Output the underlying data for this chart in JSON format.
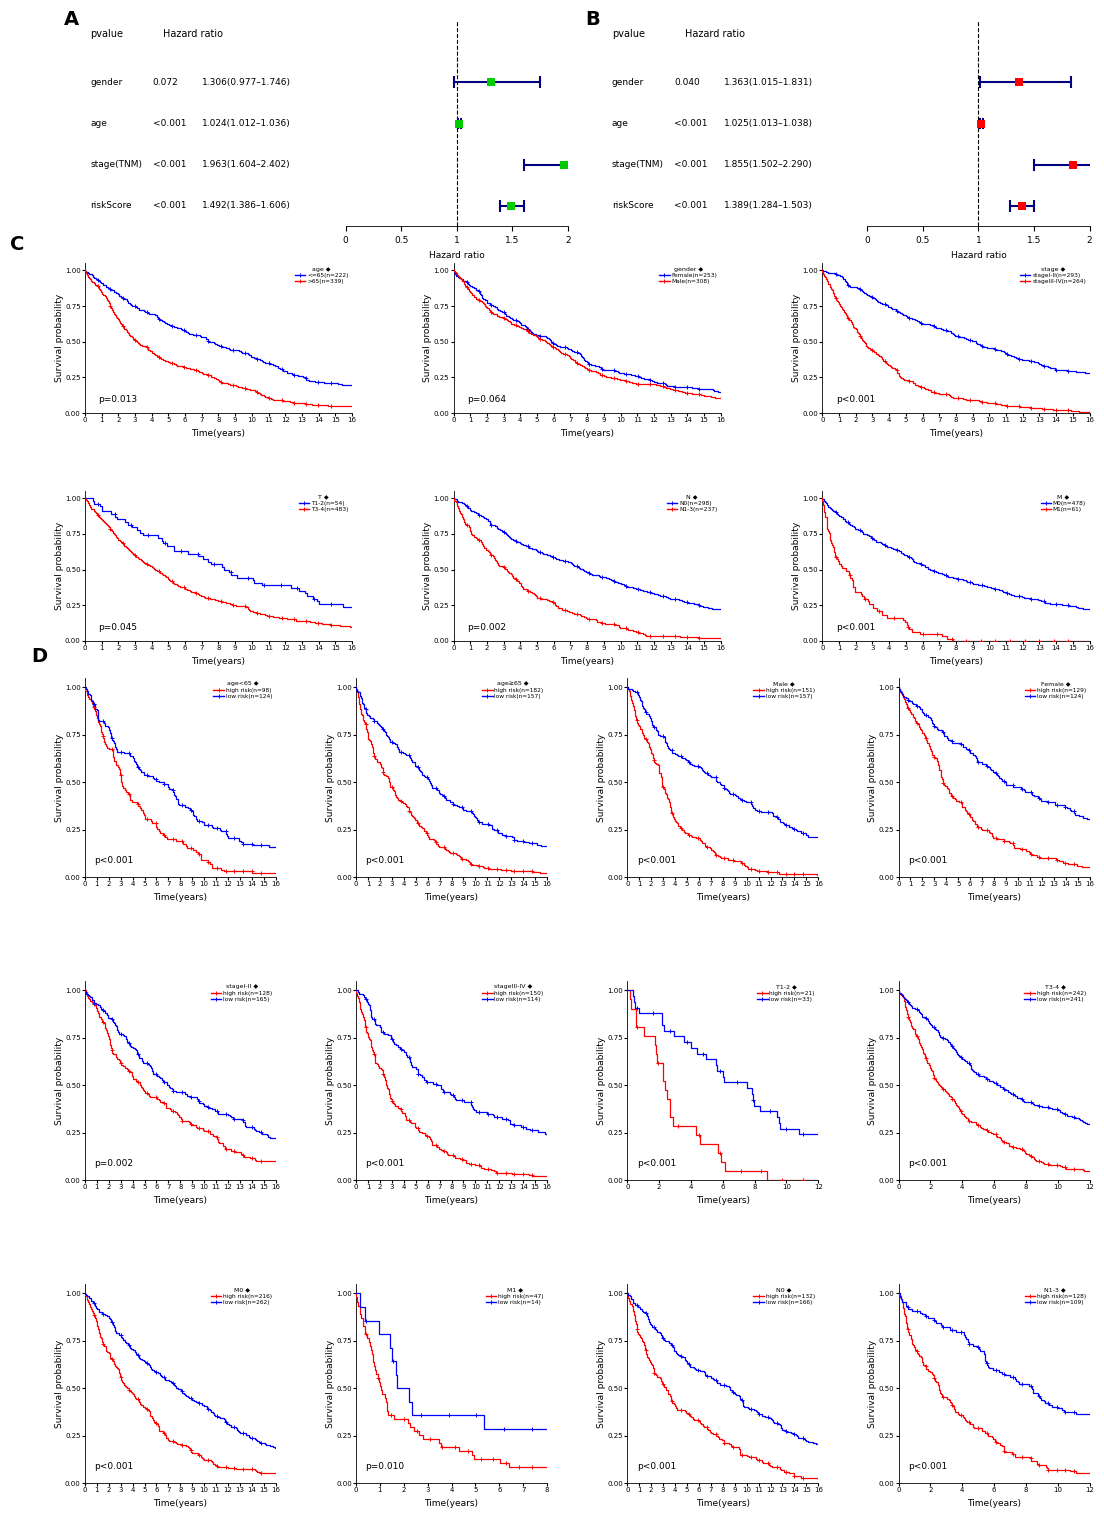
{
  "forest_A": {
    "title": "A",
    "rows": [
      "gender",
      "age",
      "stage(TNM)",
      "riskScore"
    ],
    "pvalues": [
      "0.072",
      "<0.001",
      "<0.001",
      "<0.001"
    ],
    "hr_labels": [
      "1.306(0.977–1.746)",
      "1.024(1.012–1.036)",
      "1.963(1.604–2.402)",
      "1.492(1.386–1.606)"
    ],
    "hr": [
      1.306,
      1.024,
      1.963,
      1.492
    ],
    "ci_low": [
      0.977,
      1.012,
      1.604,
      1.386
    ],
    "ci_high": [
      1.746,
      1.036,
      2.402,
      1.606
    ],
    "color": "#00cc00",
    "xlim": [
      0.0,
      2.0
    ],
    "xticks": [
      0.0,
      0.5,
      1.0,
      1.5,
      2.0
    ]
  },
  "forest_B": {
    "title": "B",
    "rows": [
      "gender",
      "age",
      "stage(TNM)",
      "riskScore"
    ],
    "pvalues": [
      "0.040",
      "<0.001",
      "<0.001",
      "<0.001"
    ],
    "hr_labels": [
      "1.363(1.015–1.831)",
      "1.025(1.013–1.038)",
      "1.855(1.502–2.290)",
      "1.389(1.284–1.503)"
    ],
    "hr": [
      1.363,
      1.025,
      1.855,
      1.389
    ],
    "ci_low": [
      1.015,
      1.013,
      1.502,
      1.284
    ],
    "ci_high": [
      1.831,
      1.038,
      2.29,
      1.503
    ],
    "color": "#ff0000",
    "xlim": [
      0.0,
      2.0
    ],
    "xticks": [
      0.0,
      0.5,
      1.0,
      1.5,
      2.0
    ]
  },
  "km_C": [
    {
      "title_var": "age",
      "legend_label": "age",
      "legend_entries": [
        "<=65(n=222)",
        ">65(n=339)"
      ],
      "colors": [
        "#0000ff",
        "#ff0000"
      ],
      "pvalue": "p=0.013",
      "xlabel": "Time(years)",
      "ylabel": "Survival probability",
      "xticks": [
        0,
        1,
        2,
        3,
        4,
        5,
        6,
        7,
        8,
        9,
        10,
        11,
        12,
        13,
        14,
        15,
        16
      ],
      "seed1": 101,
      "seed2": 202,
      "scale1": 10,
      "scale2": 5,
      "n1": 222,
      "n2": 339
    },
    {
      "title_var": "gender",
      "legend_label": "gender",
      "legend_entries": [
        "Female(n=253)",
        "Male(n=308)"
      ],
      "colors": [
        "#0000ff",
        "#ff0000"
      ],
      "pvalue": "p=0.064",
      "xlabel": "Time(years)",
      "ylabel": "Survival probability",
      "xticks": [
        0,
        1,
        2,
        3,
        4,
        5,
        6,
        7,
        8,
        9,
        10,
        11,
        12,
        13,
        14,
        15,
        16
      ],
      "seed1": 103,
      "seed2": 204,
      "scale1": 9,
      "scale2": 7,
      "n1": 253,
      "n2": 308
    },
    {
      "title_var": "stage",
      "legend_label": "stage",
      "legend_entries": [
        "stageI-II(n=293)",
        "stageIII-IV(n=264)"
      ],
      "colors": [
        "#0000ff",
        "#ff0000"
      ],
      "pvalue": "p<0.001",
      "xlabel": "Time(years)",
      "ylabel": "Survival probability",
      "xticks": [
        0,
        1,
        2,
        3,
        4,
        5,
        6,
        7,
        8,
        9,
        10,
        11,
        12,
        13,
        14,
        15,
        16
      ],
      "seed1": 105,
      "seed2": 206,
      "scale1": 12,
      "scale2": 4,
      "n1": 293,
      "n2": 264
    },
    {
      "title_var": "T",
      "legend_label": "T",
      "legend_entries": [
        "T1-2(n=54)",
        "T3-4(n=483)"
      ],
      "colors": [
        "#0000ff",
        "#ff0000"
      ],
      "pvalue": "p=0.045",
      "xlabel": "Time(years)",
      "ylabel": "Survival probability",
      "xticks": [
        0,
        1,
        2,
        3,
        4,
        5,
        6,
        7,
        8,
        9,
        10,
        11,
        12,
        13,
        14,
        15,
        16
      ],
      "seed1": 107,
      "seed2": 208,
      "scale1": 11,
      "scale2": 6,
      "n1": 54,
      "n2": 483
    },
    {
      "title_var": "N",
      "legend_label": "N",
      "legend_entries": [
        "N0(n=298)",
        "N1-3(n=237)"
      ],
      "colors": [
        "#0000ff",
        "#ff0000"
      ],
      "pvalue": "p=0.002",
      "xlabel": "Time(years)",
      "ylabel": "Survival probability",
      "xticks": [
        0,
        1,
        2,
        3,
        4,
        5,
        6,
        7,
        8,
        9,
        10,
        11,
        12,
        13,
        14,
        15,
        16
      ],
      "seed1": 109,
      "seed2": 210,
      "scale1": 10,
      "scale2": 5,
      "n1": 298,
      "n2": 237
    },
    {
      "title_var": "M",
      "legend_label": "M",
      "legend_entries": [
        "M0(n=478)",
        "M1(n=61)"
      ],
      "colors": [
        "#0000ff",
        "#ff0000"
      ],
      "pvalue": "p<0.001",
      "xlabel": "Time(years)",
      "ylabel": "Survival probability",
      "xticks": [
        0,
        1,
        2,
        3,
        4,
        5,
        6,
        7,
        8,
        9,
        10,
        11,
        12,
        13,
        14,
        15,
        16
      ],
      "seed1": 111,
      "seed2": 212,
      "scale1": 10,
      "scale2": 2,
      "n1": 478,
      "n2": 61
    }
  ],
  "km_D": [
    {
      "title_var": "age<65",
      "legend_label": "age<65",
      "legend_entries": [
        "high risk(n=98)",
        "low risk(n=124)"
      ],
      "colors": [
        "#ff0000",
        "#0000ff"
      ],
      "pvalue": "p<0.001",
      "xlabel": "Time(years)",
      "ylabel": "Survival probability",
      "xticks": [
        0,
        1,
        2,
        3,
        4,
        5,
        6,
        7,
        8,
        9,
        10,
        11,
        12,
        13,
        14,
        15,
        16
      ],
      "seed1": 301,
      "seed2": 401,
      "scale1": 4,
      "scale2": 10,
      "n1": 98,
      "n2": 124
    },
    {
      "title_var": "age≥65",
      "legend_label": "age≥65",
      "legend_entries": [
        "high risk(n=182)",
        "low risk(n=157)"
      ],
      "colors": [
        "#ff0000",
        "#0000ff"
      ],
      "pvalue": "p<0.001",
      "xlabel": "Time(years)",
      "ylabel": "Survival probability",
      "xticks": [
        0,
        1,
        2,
        3,
        4,
        5,
        6,
        7,
        8,
        9,
        10,
        11,
        12,
        13,
        14,
        15,
        16
      ],
      "seed1": 303,
      "seed2": 403,
      "scale1": 4,
      "scale2": 9,
      "n1": 182,
      "n2": 157
    },
    {
      "title_var": "Male",
      "legend_label": "Male",
      "legend_entries": [
        "high risk(n=151)",
        "low risk(n=157)"
      ],
      "colors": [
        "#ff0000",
        "#0000ff"
      ],
      "pvalue": "p<0.001",
      "xlabel": "Time(years)",
      "ylabel": "Survival probability",
      "xticks": [
        0,
        1,
        2,
        3,
        4,
        5,
        6,
        7,
        8,
        9,
        10,
        11,
        12,
        13,
        14,
        15,
        16
      ],
      "seed1": 305,
      "seed2": 405,
      "scale1": 4,
      "scale2": 10,
      "n1": 151,
      "n2": 157
    },
    {
      "title_var": "Female",
      "legend_label": "Female",
      "legend_entries": [
        "high risk(n=129)",
        "low risk(n=124)"
      ],
      "colors": [
        "#ff0000",
        "#0000ff"
      ],
      "pvalue": "p<0.001",
      "xlabel": "Time(years)",
      "ylabel": "Survival probability",
      "xticks": [
        0,
        1,
        2,
        3,
        4,
        5,
        6,
        7,
        8,
        9,
        10,
        11,
        12,
        13,
        14,
        15,
        16
      ],
      "seed1": 307,
      "seed2": 407,
      "scale1": 5,
      "scale2": 11,
      "n1": 129,
      "n2": 124
    },
    {
      "title_var": "stageI-II",
      "legend_label": "stageI-II",
      "legend_entries": [
        "high risk(n=128)",
        "low risk(n=165)"
      ],
      "colors": [
        "#ff0000",
        "#0000ff"
      ],
      "pvalue": "p=0.002",
      "xlabel": "Time(years)",
      "ylabel": "Survival probability",
      "xticks": [
        0,
        1,
        2,
        3,
        4,
        5,
        6,
        7,
        8,
        9,
        10,
        11,
        12,
        13,
        14,
        15,
        16
      ],
      "seed1": 309,
      "seed2": 409,
      "scale1": 6,
      "scale2": 12,
      "n1": 128,
      "n2": 165
    },
    {
      "title_var": "stageIII-IV",
      "legend_label": "stageIII-IV",
      "legend_entries": [
        "high risk(n=150)",
        "low risk(n=114)"
      ],
      "colors": [
        "#ff0000",
        "#0000ff"
      ],
      "pvalue": "p<0.001",
      "xlabel": "Time(years)",
      "ylabel": "Survival probability",
      "xticks": [
        0,
        1,
        2,
        3,
        4,
        5,
        6,
        7,
        8,
        9,
        10,
        11,
        12,
        13,
        14,
        15,
        16
      ],
      "seed1": 311,
      "seed2": 411,
      "scale1": 4,
      "scale2": 10,
      "n1": 150,
      "n2": 114
    },
    {
      "title_var": "T1-2",
      "legend_label": "T1-2",
      "legend_entries": [
        "high risk(n=21)",
        "low risk(n=33)"
      ],
      "colors": [
        "#ff0000",
        "#0000ff"
      ],
      "pvalue": "p<0.001",
      "xlabel": "Time(years)",
      "ylabel": "Survival probability",
      "xticks": [
        0,
        2,
        4,
        6,
        8,
        10,
        12
      ],
      "seed1": 313,
      "seed2": 413,
      "scale1": 3,
      "scale2": 9,
      "n1": 21,
      "n2": 33
    },
    {
      "title_var": "T3-4",
      "legend_label": "T3-4",
      "legend_entries": [
        "high risk(n=242)",
        "low risk(n=241)"
      ],
      "colors": [
        "#ff0000",
        "#0000ff"
      ],
      "pvalue": "p<0.001",
      "xlabel": "Time(years)",
      "ylabel": "Survival probability",
      "xticks": [
        0,
        2,
        4,
        6,
        8,
        10,
        12
      ],
      "seed1": 315,
      "seed2": 415,
      "scale1": 4,
      "scale2": 10,
      "n1": 242,
      "n2": 241
    },
    {
      "title_var": "M0",
      "legend_label": "M0",
      "legend_entries": [
        "high risk(n=216)",
        "low risk(n=262)"
      ],
      "colors": [
        "#ff0000",
        "#0000ff"
      ],
      "pvalue": "p<0.001",
      "xlabel": "Time(years)",
      "ylabel": "Survival probability",
      "xticks": [
        0,
        1,
        2,
        3,
        4,
        5,
        6,
        7,
        8,
        9,
        10,
        11,
        12,
        13,
        14,
        15,
        16
      ],
      "seed1": 317,
      "seed2": 417,
      "scale1": 5,
      "scale2": 11,
      "n1": 216,
      "n2": 262
    },
    {
      "title_var": "M1",
      "legend_label": "M1",
      "legend_entries": [
        "high risk(n=47)",
        "low risk(n=14)"
      ],
      "colors": [
        "#ff0000",
        "#0000ff"
      ],
      "pvalue": "p=0.010",
      "xlabel": "Time(years)",
      "ylabel": "Survival probability",
      "xticks": [
        0,
        1,
        2,
        3,
        4,
        5,
        6,
        7,
        8
      ],
      "seed1": 319,
      "seed2": 419,
      "scale1": 2,
      "scale2": 5,
      "n1": 47,
      "n2": 14
    },
    {
      "title_var": "N0",
      "legend_label": "N0",
      "legend_entries": [
        "high risk(n=132)",
        "low risk(n=166)"
      ],
      "colors": [
        "#ff0000",
        "#0000ff"
      ],
      "pvalue": "p<0.001",
      "xlabel": "Time(years)",
      "ylabel": "Survival probability",
      "xticks": [
        0,
        1,
        2,
        3,
        4,
        5,
        6,
        7,
        8,
        9,
        10,
        11,
        12,
        13,
        14,
        15,
        16
      ],
      "seed1": 321,
      "seed2": 421,
      "scale1": 5,
      "scale2": 11,
      "n1": 132,
      "n2": 166
    },
    {
      "title_var": "N1-3",
      "legend_label": "N1-3",
      "legend_entries": [
        "high risk(n=128)",
        "low risk(n=109)"
      ],
      "colors": [
        "#ff0000",
        "#0000ff"
      ],
      "pvalue": "p<0.001",
      "xlabel": "Time(years)",
      "ylabel": "Survival probability",
      "xticks": [
        0,
        2,
        4,
        6,
        8,
        10,
        12
      ],
      "seed1": 323,
      "seed2": 423,
      "scale1": 4,
      "scale2": 10,
      "n1": 128,
      "n2": 109
    }
  ],
  "bg_color": "#ffffff",
  "label_fontsize": 6.5,
  "tick_fontsize": 5.5,
  "title_fontsize": 14
}
